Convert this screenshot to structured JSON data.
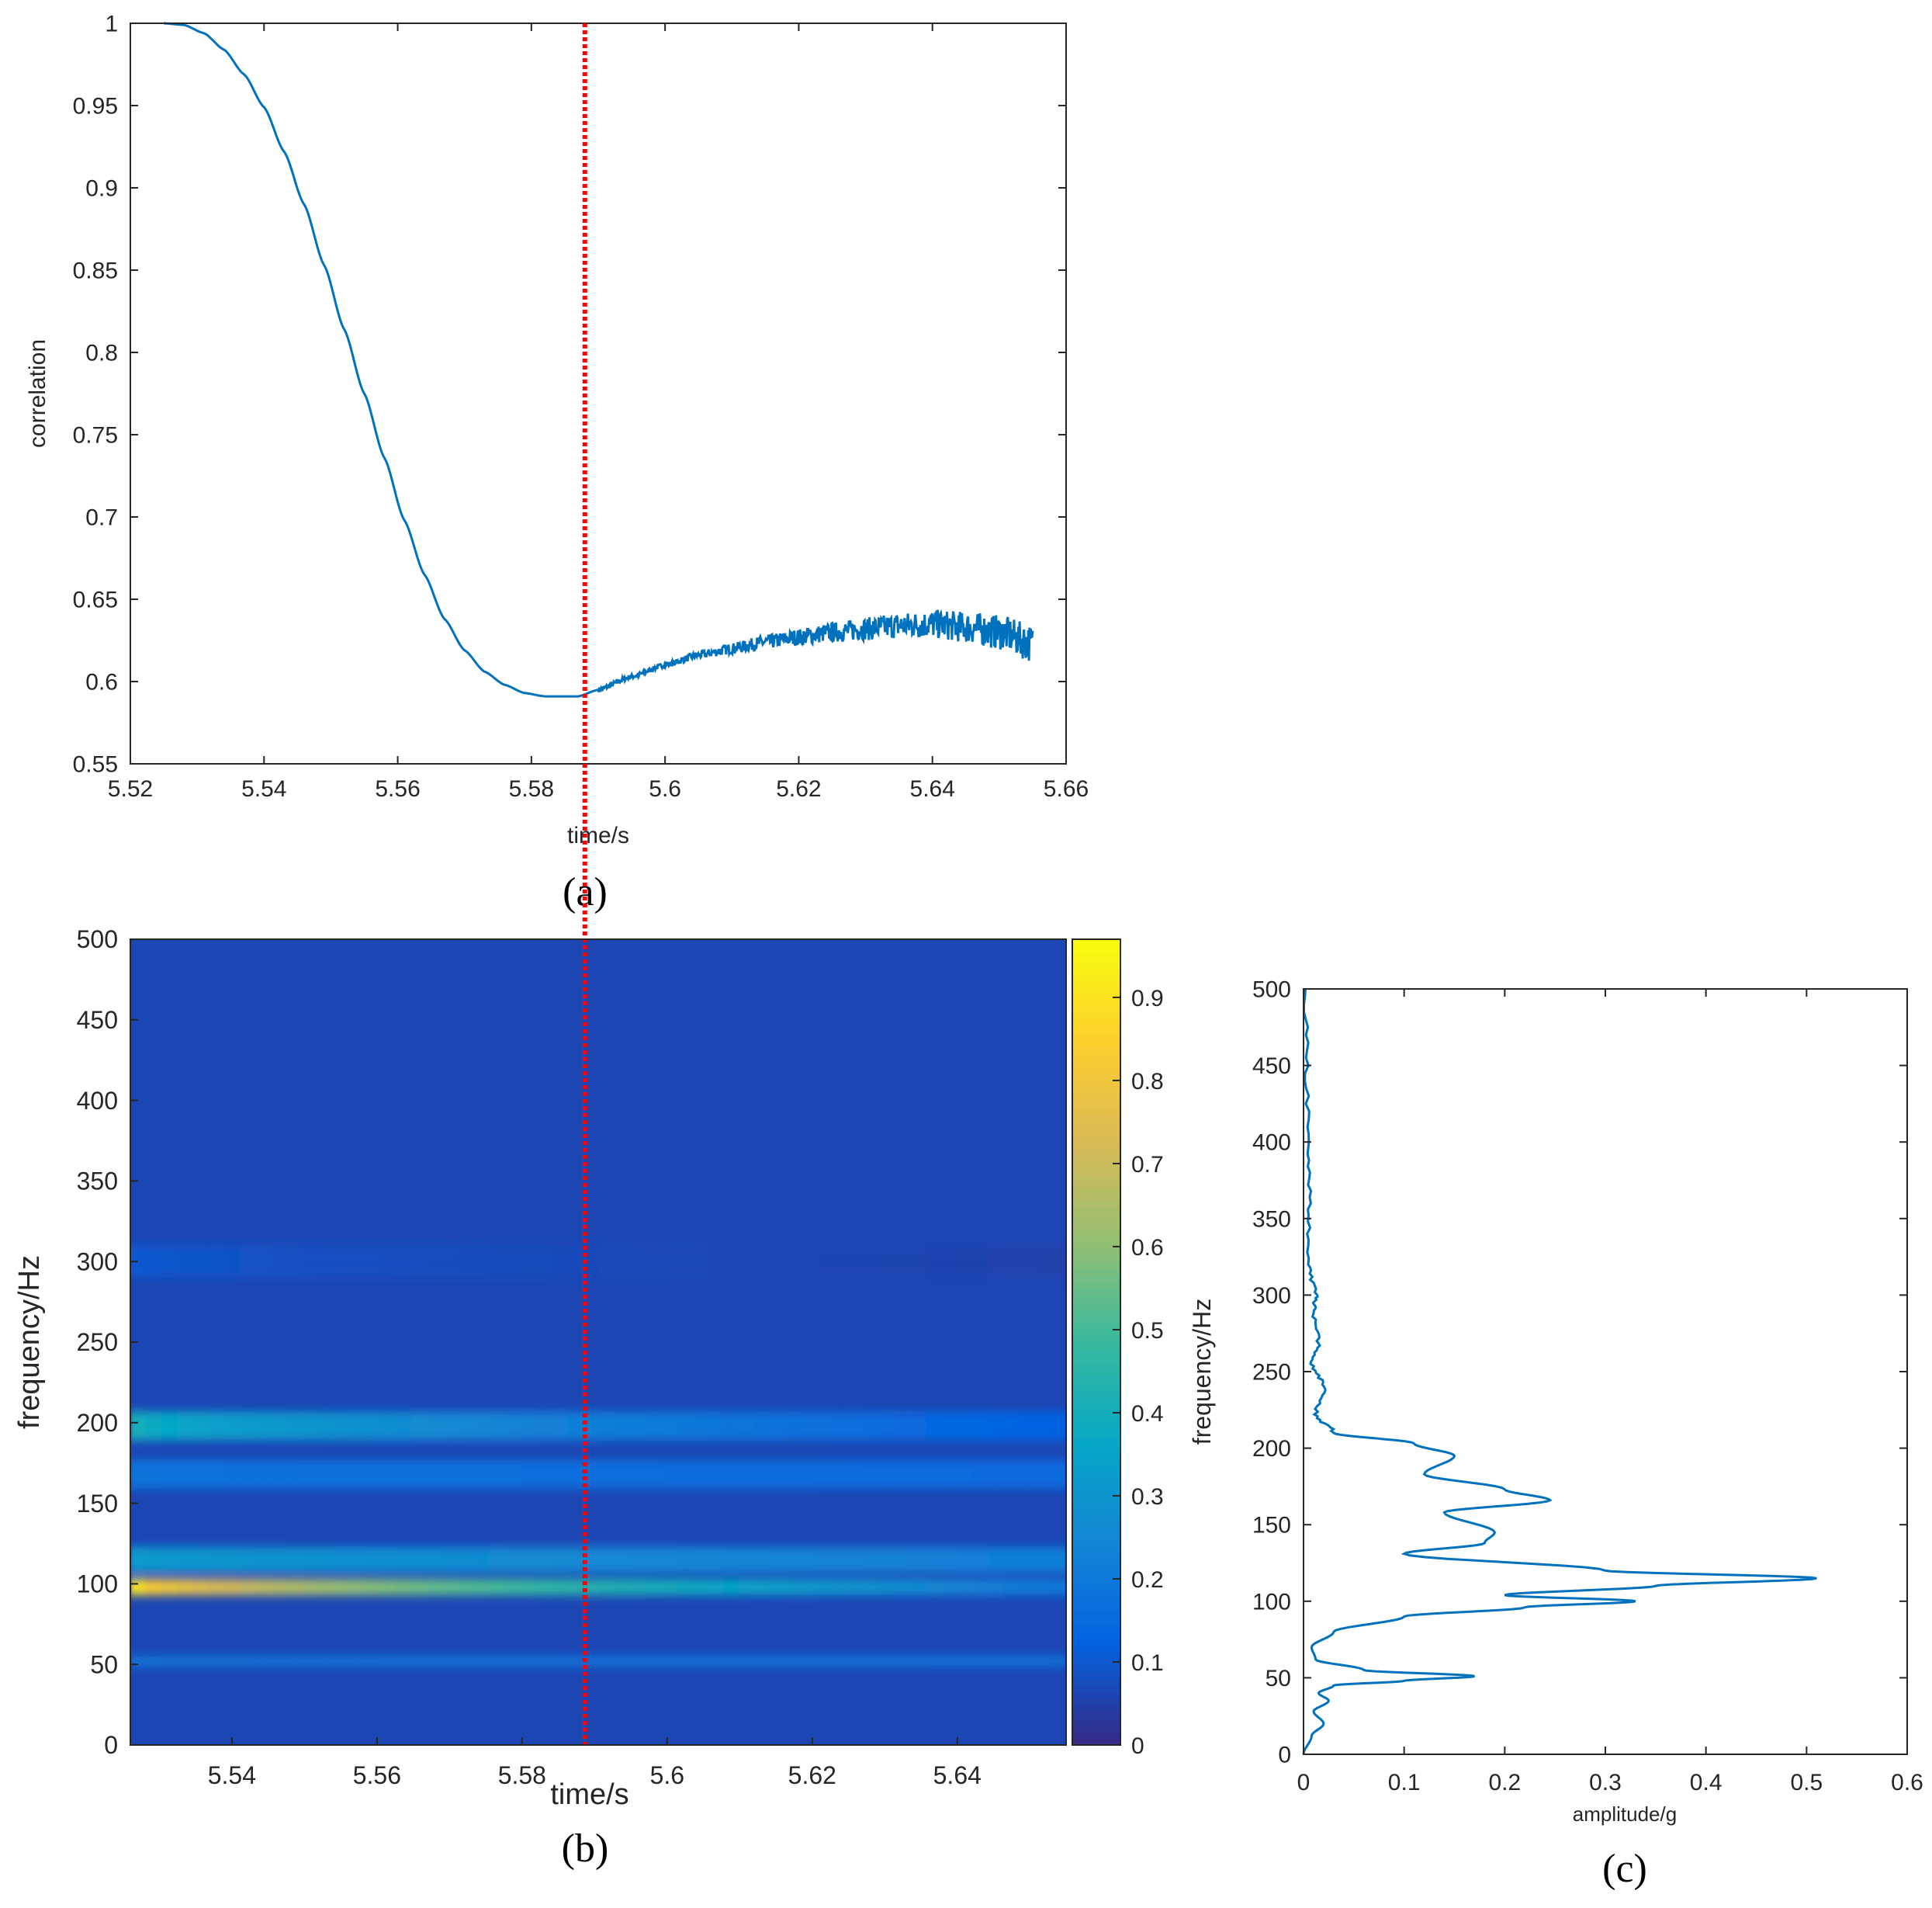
{
  "colors": {
    "line": "#0072BD",
    "marker_line": "#ff0000",
    "axes": "#262626",
    "parula": [
      "#352a87",
      "#0363e1",
      "#1485d4",
      "#06a7c6",
      "#38b99e",
      "#92bf73",
      "#d9ba56",
      "#fcce2e",
      "#f9fb0e"
    ]
  },
  "chart_data": [
    {
      "panel": "(a)",
      "type": "line",
      "title": "",
      "xlabel": "time/s",
      "ylabel": "correlation",
      "xlim": [
        5.52,
        5.66
      ],
      "ylim": [
        0.55,
        1.0
      ],
      "xticks": [
        "5.52",
        "5.54",
        "5.56",
        "5.58",
        "5.6",
        "5.62",
        "5.64",
        "5.66"
      ],
      "yticks": [
        "0.55",
        "0.6",
        "0.65",
        "0.7",
        "0.75",
        "0.8",
        "0.85",
        "0.9",
        "0.95",
        "1"
      ],
      "grid": false,
      "series": [
        {
          "x": [
            5.525,
            5.528,
            5.531,
            5.534,
            5.537,
            5.54,
            5.543,
            5.546,
            5.549,
            5.552,
            5.555,
            5.558,
            5.561,
            5.564,
            5.567,
            5.57,
            5.573,
            5.576,
            5.579,
            5.582,
            5.585,
            5.587,
            5.59,
            5.595,
            5.6,
            5.605,
            5.61,
            5.615,
            5.62,
            5.625,
            5.63,
            5.635,
            5.64,
            5.645,
            5.65,
            5.655
          ],
          "y": [
            1.0,
            0.999,
            0.994,
            0.984,
            0.969,
            0.949,
            0.922,
            0.89,
            0.853,
            0.814,
            0.775,
            0.736,
            0.698,
            0.665,
            0.638,
            0.619,
            0.606,
            0.598,
            0.593,
            0.591,
            0.591,
            0.591,
            0.595,
            0.603,
            0.61,
            0.616,
            0.62,
            0.624,
            0.627,
            0.63,
            0.632,
            0.634,
            0.635,
            0.633,
            0.63,
            0.623
          ]
        }
      ],
      "marker_x": 5.588
    },
    {
      "panel": "(b)",
      "type": "heatmap",
      "title": "",
      "xlabel": "time/s",
      "ylabel": "frequency/Hz",
      "xlim": [
        5.526,
        5.655
      ],
      "ylim": [
        0,
        500
      ],
      "xticks": [
        "5.54",
        "5.56",
        "5.58",
        "5.6",
        "5.62",
        "5.64"
      ],
      "yticks": [
        "0",
        "50",
        "100",
        "150",
        "200",
        "250",
        "300",
        "350",
        "400",
        "450",
        "500"
      ],
      "colorbar_ticks": [
        "0",
        "0.1",
        "0.2",
        "0.3",
        "0.4",
        "0.5",
        "0.6",
        "0.7",
        "0.8",
        "0.9"
      ],
      "colorbar_range": [
        0,
        0.97
      ],
      "bands": [
        {
          "f": 98,
          "v_start": 0.9,
          "v_end": 0.2,
          "width": 5
        },
        {
          "f": 115,
          "v_start": 0.32,
          "v_end": 0.22,
          "width": 8
        },
        {
          "f": 198,
          "v_start": 0.4,
          "v_end": 0.12,
          "width": 9
        },
        {
          "f": 168,
          "v_start": 0.18,
          "v_end": 0.15,
          "width": 9
        },
        {
          "f": 52,
          "v_start": 0.2,
          "v_end": 0.18,
          "width": 3
        },
        {
          "f": 300,
          "v_start": 0.1,
          "v_end": 0.05,
          "width": 10
        }
      ],
      "marker_x": 5.59
    },
    {
      "panel": "(c)",
      "type": "line",
      "title": "",
      "xlabel": "amplitude/g",
      "ylabel": "frequency/Hz",
      "xlim": [
        0,
        0.6
      ],
      "ylim": [
        0,
        500
      ],
      "xticks": [
        "0",
        "0.1",
        "0.2",
        "0.3",
        "0.4",
        "0.5",
        "0.6"
      ],
      "yticks": [
        "0",
        "50",
        "100",
        "150",
        "200",
        "250",
        "300",
        "350",
        "400",
        "450",
        "500"
      ],
      "grid": false,
      "series": [
        {
          "amplitude": [
            0.0,
            0.008,
            0.02,
            0.01,
            0.025,
            0.015,
            0.03,
            0.1,
            0.17,
            0.06,
            0.012,
            0.008,
            0.03,
            0.1,
            0.22,
            0.33,
            0.2,
            0.35,
            0.51,
            0.3,
            0.1,
            0.18,
            0.19,
            0.14,
            0.245,
            0.2,
            0.12,
            0.15,
            0.11,
            0.03,
            0.012,
            0.02,
            0.008,
            0.015,
            0.01,
            0.012,
            0.005,
            0.006,
            0.004,
            0.003,
            0.002
          ],
          "frequency": [
            0,
            12,
            20,
            28,
            35,
            40,
            45,
            48,
            51,
            55,
            62,
            70,
            80,
            90,
            96,
            100,
            104,
            110,
            115,
            120,
            131,
            138,
            145,
            158,
            166,
            173,
            183,
            195,
            203,
            210,
            222,
            240,
            255,
            270,
            290,
            300,
            320,
            360,
            400,
            450,
            500
          ]
        }
      ]
    }
  ],
  "captions": [
    "(a)",
    "(b)",
    "(c)"
  ]
}
